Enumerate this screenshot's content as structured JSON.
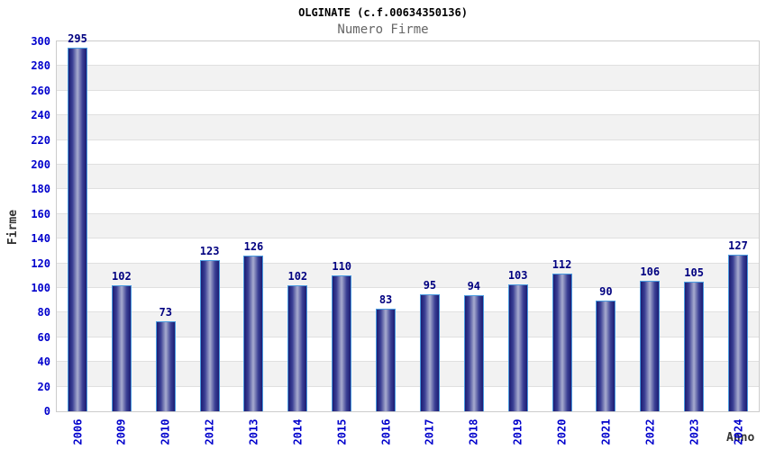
{
  "header": {
    "title": "OLGINATE (c.f.00634350136)",
    "subtitle": "Numero Firme"
  },
  "axes": {
    "y_title": "Firme",
    "x_title": "Anno"
  },
  "chart_data": {
    "type": "bar",
    "title": "OLGINATE (c.f.00634350136)",
    "subtitle": "Numero Firme",
    "xlabel": "Anno",
    "ylabel": "Firme",
    "categories": [
      "2006",
      "2009",
      "2010",
      "2012",
      "2013",
      "2014",
      "2015",
      "2016",
      "2017",
      "2018",
      "2019",
      "2020",
      "2021",
      "2022",
      "2023",
      "2024"
    ],
    "values": [
      295,
      102,
      73,
      123,
      126,
      102,
      110,
      83,
      95,
      94,
      103,
      112,
      90,
      106,
      105,
      127
    ],
    "ylim": [
      0,
      300
    ],
    "ytick_step": 20,
    "grid": "horizontal gridlines with alternating shaded bands every 20 units",
    "legend_position": "none",
    "bar_labels_shown": true,
    "colors": {
      "bar_edge": "#4a9be0",
      "bar_gradient_dark": "#1c1c72",
      "bar_gradient_mid": "#3a3f94",
      "bar_gradient_light": "#a8accf",
      "tick_label": "#0000cc",
      "value_label": "#000080",
      "band_fill": "#f2f2f2",
      "gridline": "#e0e0e0",
      "plot_border": "#cccccc",
      "title_color": "#000000",
      "subtitle_color": "#666666",
      "axis_title_color": "#333333"
    }
  }
}
